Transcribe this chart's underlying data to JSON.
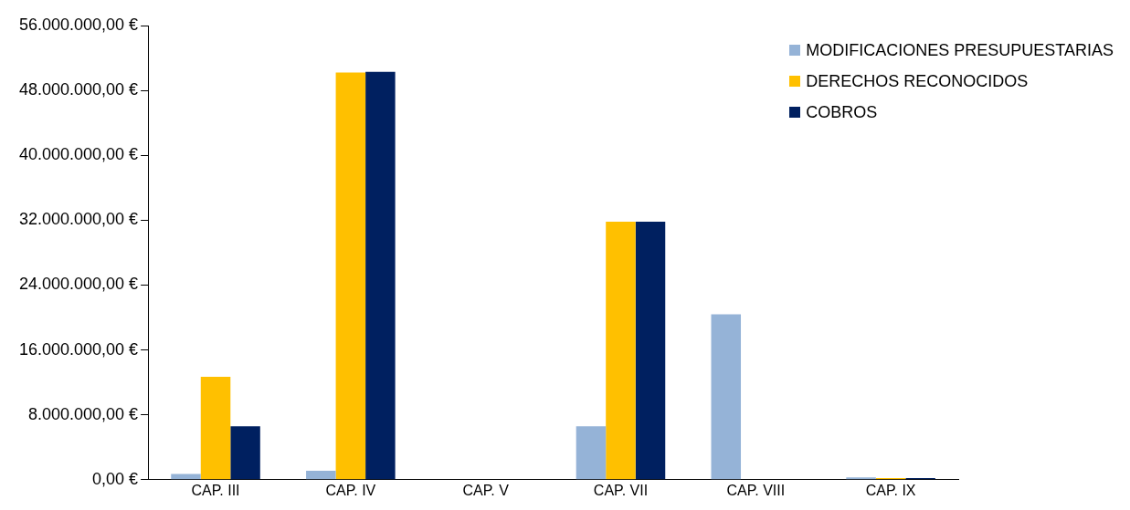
{
  "chart_data": {
    "type": "bar",
    "categories": [
      "CAP. III",
      "CAP. IV",
      "CAP. V",
      "CAP. VII",
      "CAP. VIII",
      "CAP. IX"
    ],
    "series": [
      {
        "name": "MODIFICACIONES PRESUPUESTARIAS",
        "color": "#95b3d7",
        "values": [
          700000,
          1100000,
          0,
          6600000,
          20400000,
          300000
        ]
      },
      {
        "name": "DERECHOS RECONOCIDOS",
        "color": "#ffc000",
        "values": [
          12700000,
          50200000,
          0,
          31800000,
          0,
          200000
        ]
      },
      {
        "name": "COBROS",
        "color": "#002060",
        "values": [
          6600000,
          50300000,
          0,
          31800000,
          0,
          200000
        ]
      }
    ],
    "ylim": [
      0,
      56000000
    ],
    "yticks": [
      {
        "value": 0,
        "label": "0,00 €"
      },
      {
        "value": 8000000,
        "label": "8.000.000,00 €"
      },
      {
        "value": 16000000,
        "label": "16.000.000,00 €"
      },
      {
        "value": 24000000,
        "label": "24.000.000,00 €"
      },
      {
        "value": 32000000,
        "label": "32.000.000,00 €"
      },
      {
        "value": 40000000,
        "label": "40.000.000,00 €"
      },
      {
        "value": 48000000,
        "label": "48.000.000,00 €"
      },
      {
        "value": 56000000,
        "label": "56.000.000,00 €"
      }
    ],
    "grid": false,
    "legend": "top right"
  }
}
